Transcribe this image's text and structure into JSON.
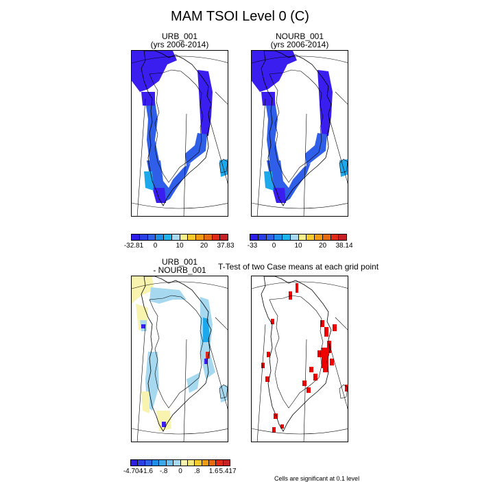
{
  "figure": {
    "title": "MAM TSOI Level 0 (C)"
  },
  "panels": {
    "urb": {
      "title_line1": "URB_001",
      "title_line2": "(yrs 2006-2014)"
    },
    "nourb": {
      "title_line1": "NOURB_001",
      "title_line2": "(yrs 2006-2014)"
    },
    "diff": {
      "title_line1": "URB_001",
      "title_line2": "- NOURB_001"
    },
    "ttest": {
      "title": "T-Test of two Case means at each grid point",
      "footnote": "Cells are significant at 0.1 level"
    }
  },
  "colorbars": {
    "top_left": {
      "ticks": [
        "-32.81",
        "0",
        "10",
        "20",
        "37.83"
      ],
      "colors": [
        "#2c1ee8",
        "#2a3fe4",
        "#2f62e6",
        "#1e8ee6",
        "#1bb4ec",
        "#a6d9f0",
        "#f5f08c",
        "#f8c92a",
        "#f29a12",
        "#e66a10",
        "#e02a18",
        "#c42026"
      ]
    },
    "top_right": {
      "ticks": [
        "-33",
        "0",
        "10",
        "20",
        "38.14"
      ],
      "colors": [
        "#2c1ee8",
        "#2a3fe4",
        "#2f62e6",
        "#1e8ee6",
        "#1bb4ec",
        "#a6d9f0",
        "#f5f08c",
        "#f8c92a",
        "#f29a12",
        "#e66a10",
        "#e02a18",
        "#c42026"
      ]
    },
    "bottom_left": {
      "ticks": [
        "-4.704",
        "-1.6",
        "-.8",
        "0",
        ".8",
        "1.6",
        "5.417"
      ],
      "colors": [
        "#2c1ee8",
        "#2a3fe4",
        "#2f62e6",
        "#1e8ee6",
        "#3aa8ea",
        "#6ec0ee",
        "#a6d9f0",
        "#f8f4b0",
        "#f5e87a",
        "#f8c92a",
        "#f29a12",
        "#e66a10",
        "#e02a18",
        "#c42026"
      ]
    }
  },
  "map_colors": {
    "deep_blue": "#3a1ef0",
    "mid_blue": "#2f5ee8",
    "light_blue": "#1ea8ec",
    "pale_blue": "#a6d9f0",
    "pale_yellow": "#f8f4b0",
    "sig_red": "#ee0000"
  }
}
